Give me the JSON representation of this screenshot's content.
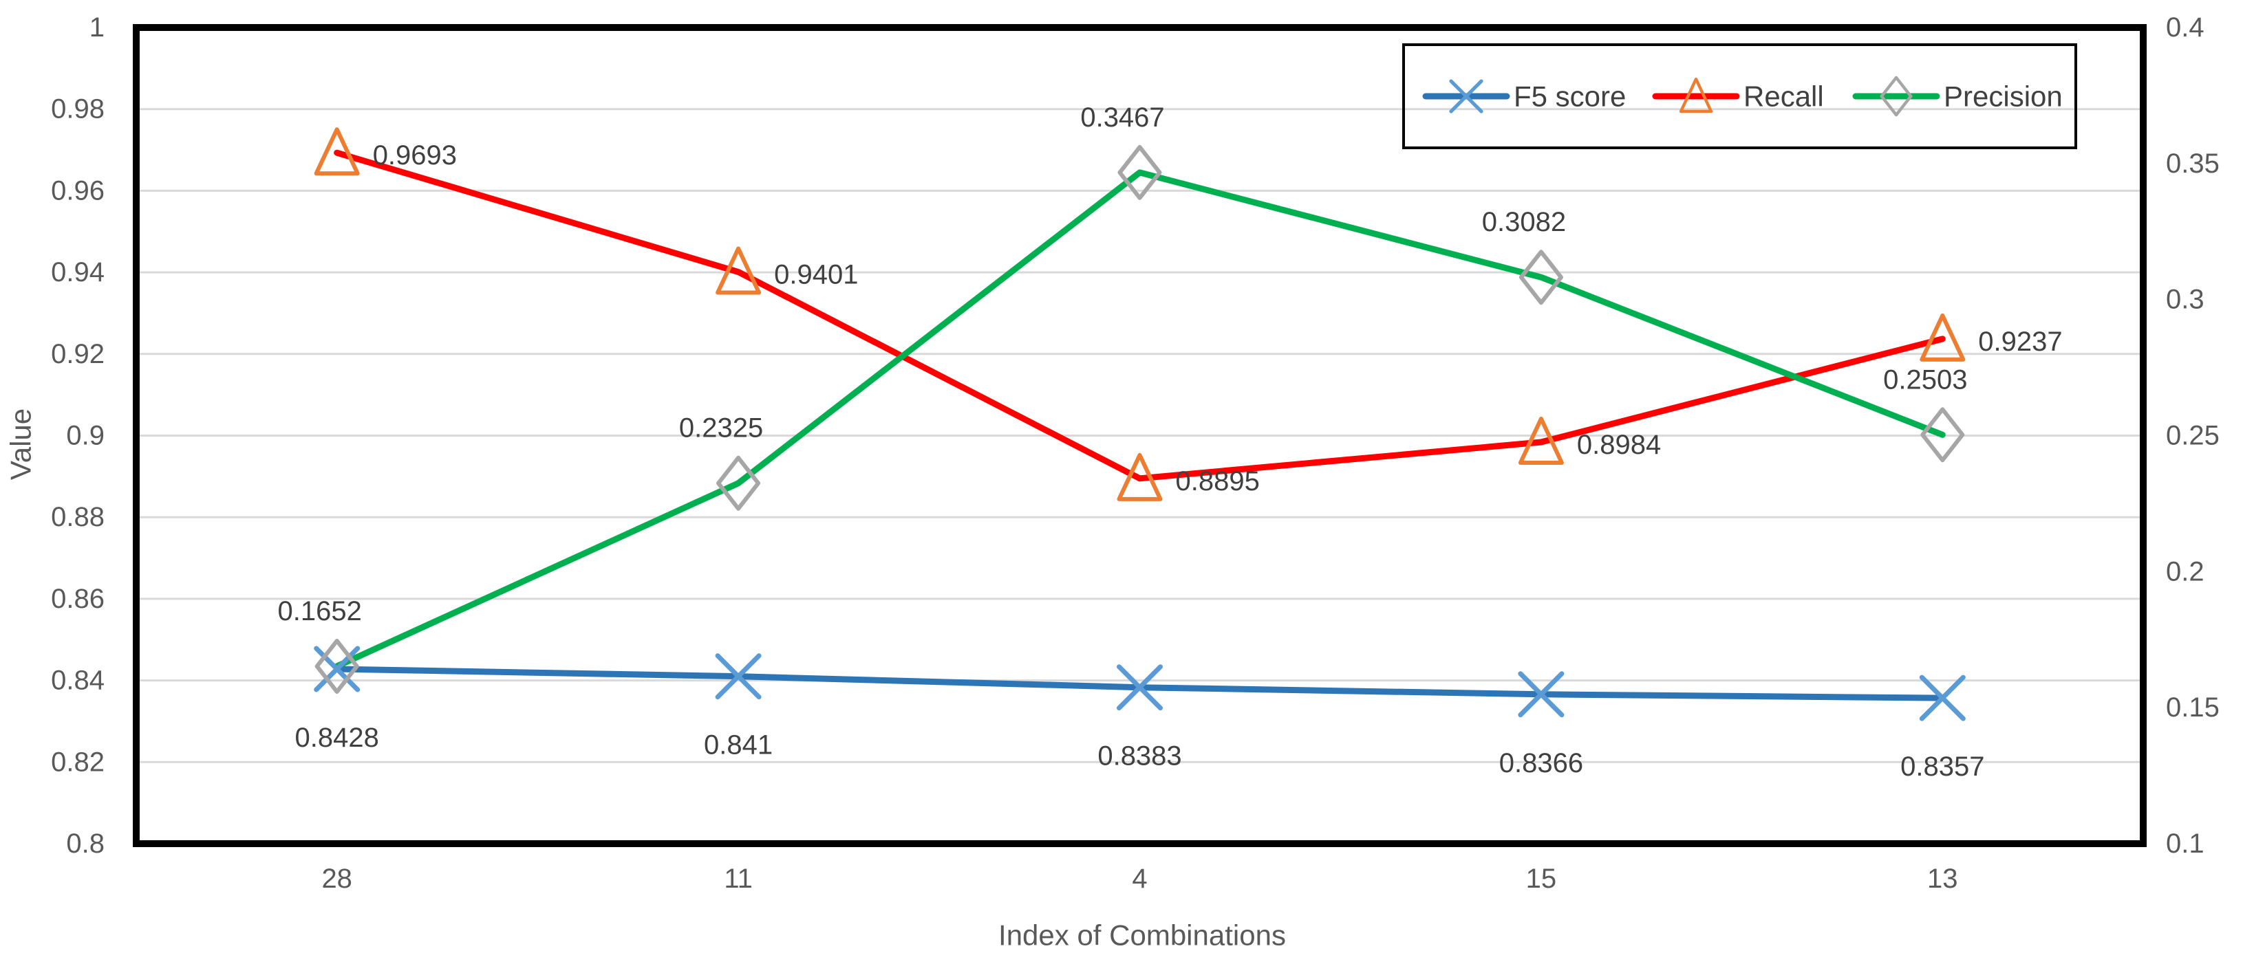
{
  "chart": {
    "background": "#FFFFFF",
    "tick_text_color": "#595959",
    "axis_title_color": "#595959",
    "data_label_color": "#404040",
    "legend_text_color": "#404040",
    "grid_color": "#D9D9D9",
    "plot_border_color": "#000000"
  },
  "chart_data": {
    "type": "line",
    "title": "",
    "grid": true,
    "x_axis": {
      "title": "Index of Combinations",
      "categories": [
        "28",
        "11",
        "4",
        "15",
        "13"
      ]
    },
    "y_axis_left": {
      "title": "Value",
      "min": 0.8,
      "max": 1.0,
      "tick_step": 0.02,
      "tick_labels": [
        "1",
        "0.98",
        "0.96",
        "0.94",
        "0.92",
        "0.9",
        "0.88",
        "0.86",
        "0.84",
        "0.82",
        "0.8"
      ]
    },
    "y_axis_right": {
      "title": "",
      "min": 0.1,
      "max": 0.4,
      "tick_step": 0.05,
      "tick_labels": [
        "0.4",
        "0.35",
        "0.3",
        "0.25",
        "0.2",
        "0.15",
        "0.1"
      ]
    },
    "legend": {
      "position": "top-right",
      "entries": [
        "F5 score",
        "Recall",
        "Precision"
      ]
    },
    "series": [
      {
        "name": "F5 score",
        "axis": "left",
        "line_color": "#2E75B6",
        "marker": "x",
        "marker_color": "#5B9BD5",
        "values": [
          0.8428,
          0.841,
          0.8383,
          0.8366,
          0.8357
        ],
        "data_labels": [
          "0.8428",
          "0.841",
          "0.8383",
          "0.8366",
          "0.8357"
        ],
        "label_position": "below"
      },
      {
        "name": "Recall",
        "axis": "left",
        "line_color": "#FF0000",
        "marker": "triangle",
        "marker_color": "#ED7D31",
        "values": [
          0.9693,
          0.9401,
          0.8895,
          0.8984,
          0.9237
        ],
        "data_labels": [
          "0.9693",
          "0.9401",
          "0.8895",
          "0.8984",
          "0.9237"
        ],
        "label_position": "right"
      },
      {
        "name": "Precision",
        "axis": "right",
        "line_color": "#00B050",
        "marker": "diamond",
        "marker_color": "#A6A6A6",
        "values": [
          0.1652,
          0.2325,
          0.3467,
          0.3082,
          0.2503
        ],
        "data_labels": [
          "0.1652",
          "0.2325",
          "0.3467",
          "0.3082",
          "0.2503"
        ],
        "label_position": "above"
      }
    ]
  }
}
